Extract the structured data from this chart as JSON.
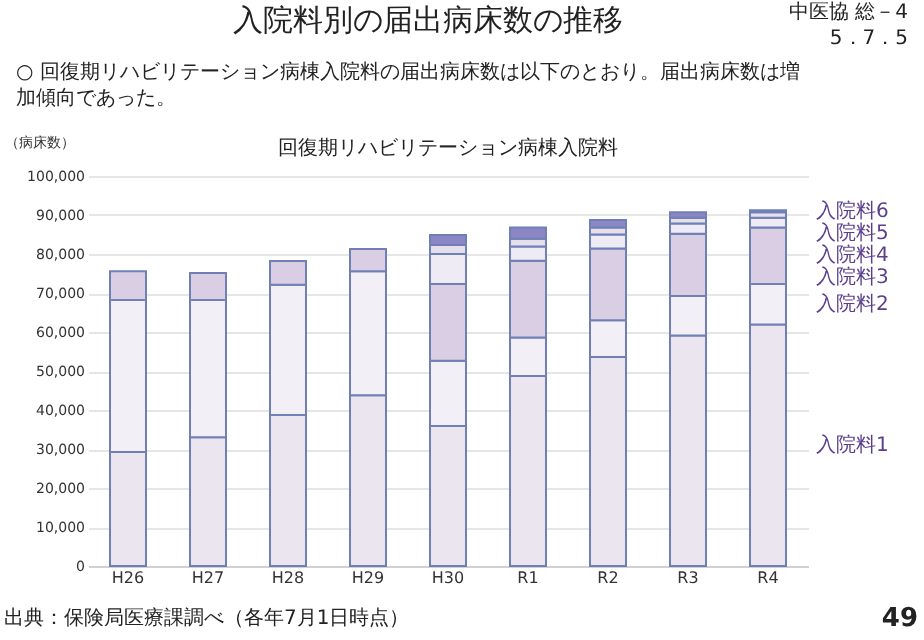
{
  "chart_data": {
    "type": "bar",
    "stacked": true,
    "title": "入院料別の届出病床数の推移",
    "subtitle": "○ 回復期リハビリテーション病棟入院料の届出病床数は以下のとおり。届出病床数は増加傾向であった。",
    "ylabel": "（病床数）",
    "annotations": [
      "回復期リハビリテーション病棟入院料",
      "中医協 総－4",
      "5．7．5",
      "出典：保険局医療課調べ（各年7月1日時点）",
      "49"
    ],
    "categories": [
      "H26",
      "H27",
      "H28",
      "H29",
      "H30",
      "R1",
      "R2",
      "R3",
      "R4"
    ],
    "series": [
      {
        "name": "入院料1",
        "color": "#ebe5f0",
        "values": [
          29200,
          33000,
          38700,
          43800,
          35900,
          48700,
          53600,
          59100,
          61900
        ]
      },
      {
        "name": "入院料2",
        "color": "#f2eff6",
        "values": [
          39000,
          35200,
          33400,
          31800,
          16700,
          9900,
          9400,
          10100,
          10400
        ]
      },
      {
        "name": "入院料3",
        "color": "#d9cee4",
        "values": [
          7400,
          6900,
          6100,
          5700,
          19700,
          19700,
          18400,
          16000,
          14500
        ]
      },
      {
        "name": "入院料4",
        "color": "#efebf4",
        "values": [
          null,
          null,
          null,
          null,
          7700,
          3600,
          3600,
          2600,
          2500
        ]
      },
      {
        "name": "入院料5",
        "color": "#e5dfec",
        "values": [
          null,
          null,
          null,
          null,
          2300,
          2000,
          1800,
          1500,
          1400
        ]
      },
      {
        "name": "入院料6",
        "color": "#8d86c6",
        "values": [
          null,
          null,
          null,
          null,
          2600,
          2900,
          1900,
          1400,
          500
        ]
      }
    ],
    "ylim": [
      0,
      100000
    ],
    "yticks": [
      0,
      {
        "value": 10000,
        "label": "10,000"
      },
      {
        "value": 20000,
        "label": "20,000"
      },
      {
        "value": 30000,
        "label": "30,000"
      },
      {
        "value": 40000,
        "label": "40,000"
      },
      {
        "value": 50000,
        "label": "50,000"
      },
      {
        "value": 60000,
        "label": "60,000"
      },
      {
        "value": 70000,
        "label": "70,000"
      },
      {
        "value": 80000,
        "label": "80,000"
      },
      {
        "value": 90000,
        "label": "90,000"
      },
      {
        "value": 100000,
        "label": "100,000"
      }
    ],
    "grid": "y"
  }
}
